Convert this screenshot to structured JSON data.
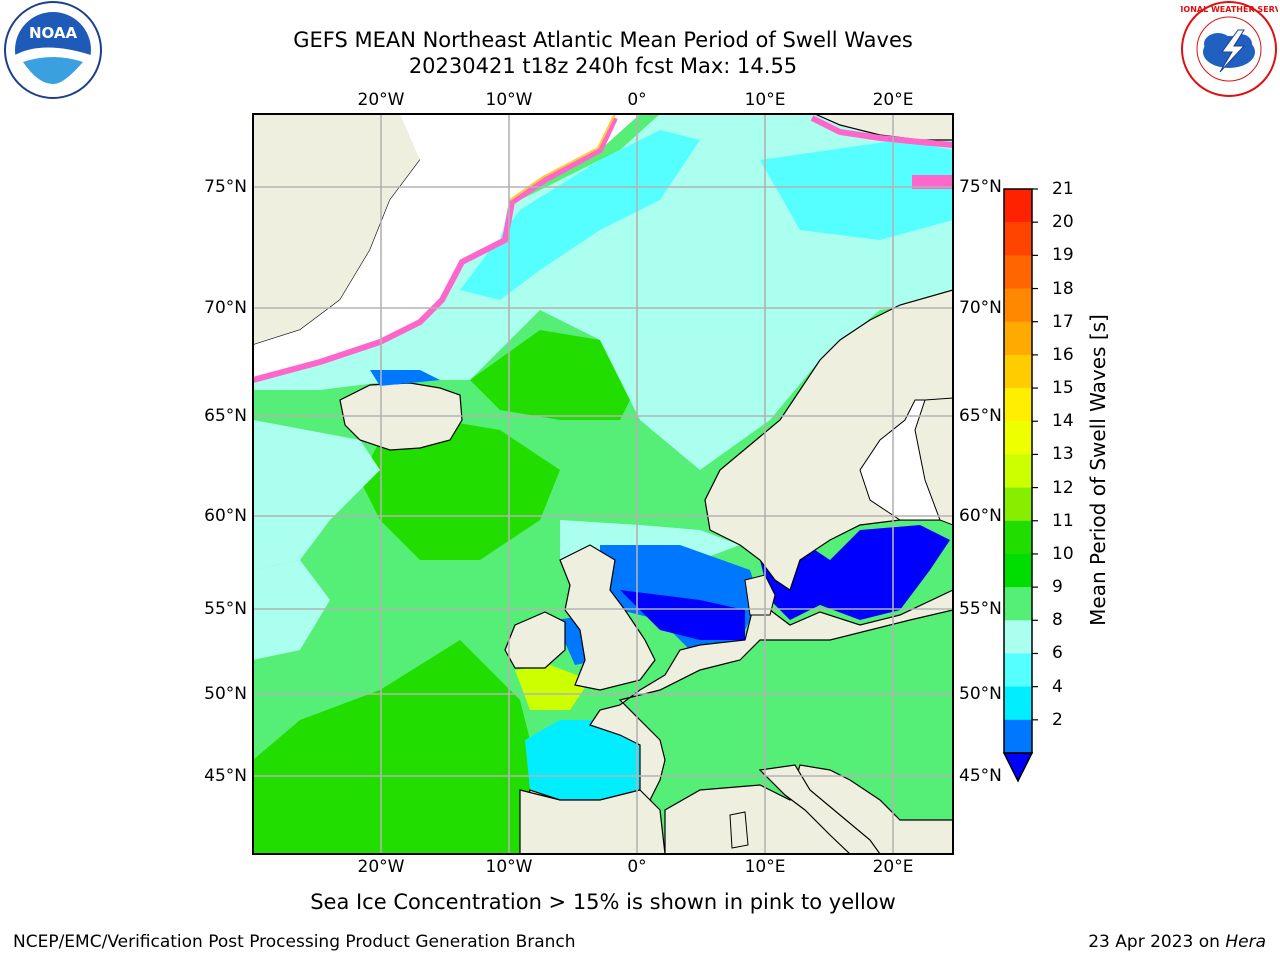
{
  "header": {
    "title_line1": "GEFS MEAN Northeast Atlantic Mean Period of Swell Waves",
    "title_line2": "20230421 t18z 240h fcst   Max: 14.55"
  },
  "map": {
    "lon_labels": [
      "20°W",
      "10°W",
      "0°",
      "10°E",
      "20°E"
    ],
    "lat_labels": [
      "75°N",
      "70°N",
      "65°N",
      "60°N",
      "55°N",
      "50°N",
      "45°N"
    ]
  },
  "colorbar": {
    "title": "Mean Period of Swell Waves [s]",
    "ticks": [
      "21",
      "20",
      "19",
      "18",
      "17",
      "16",
      "15",
      "14",
      "13",
      "12",
      "11",
      "10",
      "9",
      "8",
      "6",
      "4",
      "2"
    ],
    "colors": [
      "#ff0000",
      "#ff2200",
      "#ff4400",
      "#ff6600",
      "#ff8800",
      "#ffaa00",
      "#ffcc00",
      "#ffee00",
      "#eeff00",
      "#ccff00",
      "#88ee00",
      "#22dd00",
      "#00dd00",
      "#55ee77",
      "#aaffee",
      "#55ffff",
      "#00eeff",
      "#0077ff"
    ],
    "extend_color": "#0000ff"
  },
  "annotation": "Sea Ice Concentration > 15% is shown in pink to yellow",
  "footer": {
    "left": "NCEP/EMC/Verification Post Processing Product Generation Branch",
    "right_prefix": "23 Apr 2023 on ",
    "right_host": "Hera"
  },
  "logos": {
    "noaa_text": "NOAA",
    "nws_text": "NATIONAL WEATHER SERVICE"
  }
}
